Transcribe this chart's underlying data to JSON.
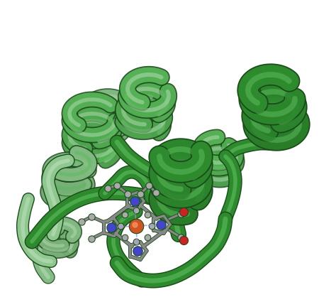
{
  "background_color": "#ffffff",
  "protein_color_main": "#2d8a2d",
  "protein_color_light": "#5aba5a",
  "protein_color_highlight": "#1a6b1a",
  "protein_color_pale": "#8ec88e",
  "protein_color_very_pale": "#b8ddb8",
  "heme_bond_color": "#888888",
  "heme_atom_color": "#aaaaaa",
  "iron_color": "#cc5522",
  "nitrogen_color": "#4444cc",
  "oxygen_color": "#cc2222",
  "outline_color": "#1a4a1a",
  "figsize": [
    4.74,
    4.25
  ],
  "dpi": 100
}
